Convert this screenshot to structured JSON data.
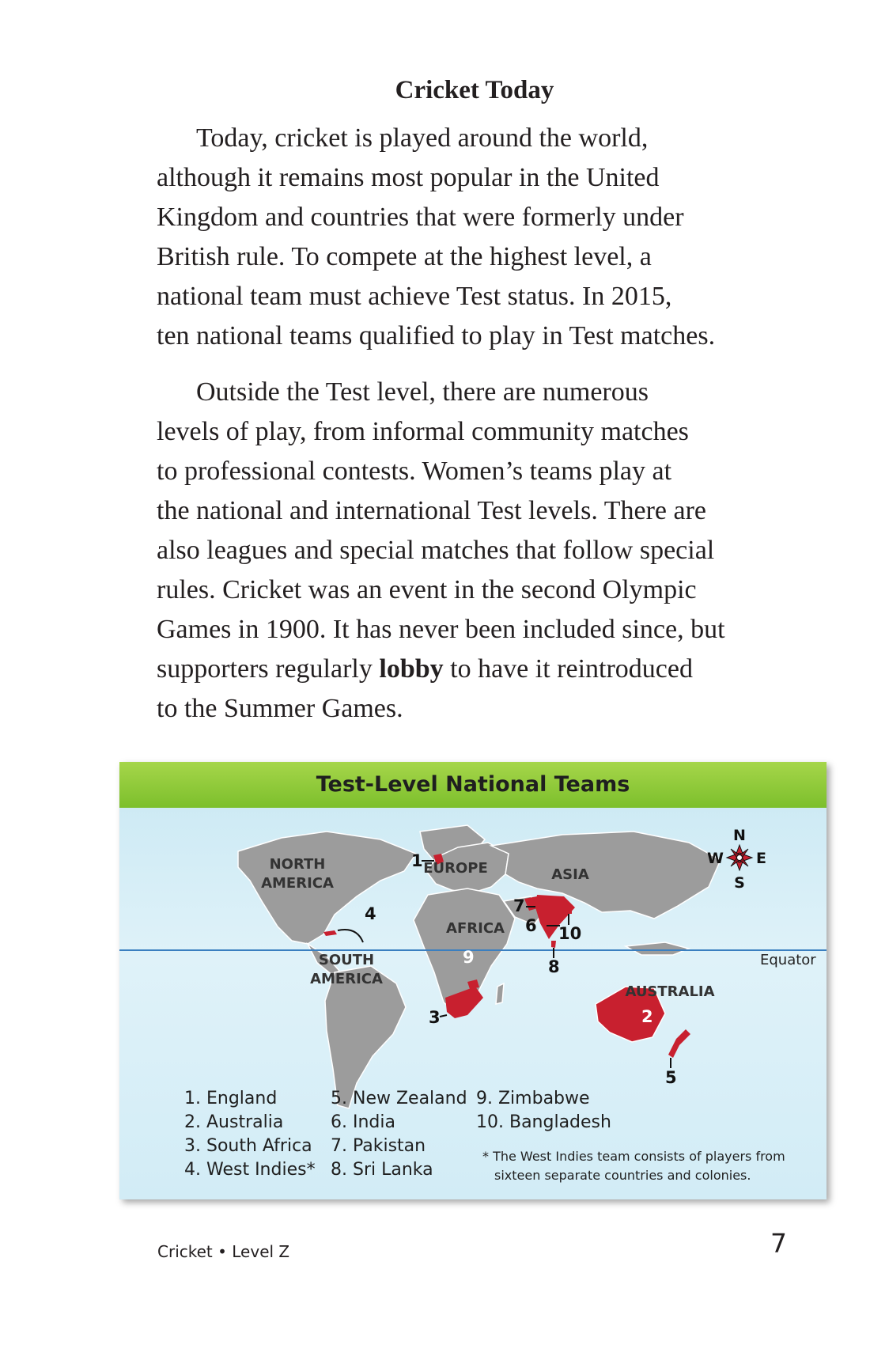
{
  "heading": "Cricket Today",
  "paragraph1": [
    "Today, cricket is played around the world,",
    "although it remains most popular in the United",
    "Kingdom and countries that were formerly under",
    "British rule. To compete at the highest level, a",
    "national team must achieve Test status. In 2015,",
    "ten national teams qualified to play in Test matches."
  ],
  "paragraph2": [
    "Outside the Test level, there are numerous",
    "levels of play, from informal community matches",
    "to professional contests. Women’s teams play at",
    "the national and international Test levels. There are",
    "also leagues and special matches that follow special",
    "rules. Cricket was an event in the second Olympic",
    "Games in 1900. It has never been included since, but"
  ],
  "paragraph2_line8": {
    "before": "supporters regularly ",
    "bold": "lobby",
    "after": " to have it reintroduced"
  },
  "paragraph2_line9": "to the Summer Games.",
  "figure": {
    "title": "Test-Level National Teams",
    "continents": {
      "north_america_1": "NORTH",
      "north_america_2": "AMERICA",
      "south_america_1": "SOUTH",
      "south_america_2": "AMERICA",
      "europe": "EUROPE",
      "asia": "ASIA",
      "africa": "AFRICA",
      "australia": "AUSTRALIA"
    },
    "equator_label": "Equator",
    "compass": {
      "n": "N",
      "e": "E",
      "s": "S",
      "w": "W"
    },
    "markers": [
      "1",
      "2",
      "3",
      "4",
      "5",
      "6",
      "7",
      "8",
      "9",
      "10"
    ],
    "legend_col1": [
      "1. England",
      "2. Australia",
      "3. South Africa",
      "4. West Indies*"
    ],
    "legend_col2": [
      "5. New Zealand",
      "6. India",
      "7. Pakistan",
      "8. Sri Lanka"
    ],
    "legend_col3": [
      "9. Zimbabwe",
      "10. Bangladesh"
    ],
    "footnote": [
      "* The West Indies team consists of players from",
      "sixteen separate countries and colonies."
    ],
    "colors": {
      "ocean": "#d6eef8",
      "land": "#9c9c9c",
      "highlight": "#c8202f",
      "title_bar": "#8cc63f",
      "equator": "#3a7fc0"
    }
  },
  "footer": {
    "book": "Cricket • Level Z",
    "page_number": "7"
  }
}
